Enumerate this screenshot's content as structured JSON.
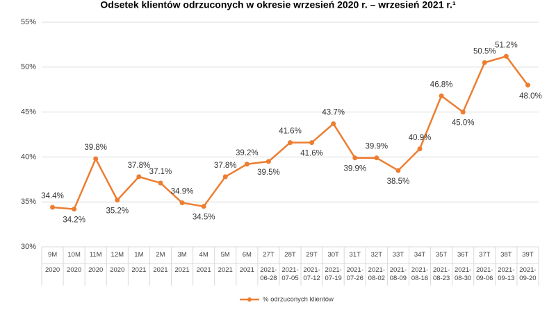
{
  "chart_data": {
    "type": "line",
    "title": "Odsetek klientów odrzuconych w okresie wrzesień 2020 r. – wrzesień 2021 r.¹",
    "categories": [
      "9M",
      "10M",
      "11M",
      "12M",
      "1M",
      "2M",
      "3M",
      "4M",
      "5M",
      "6M",
      "27T",
      "28T",
      "29T",
      "30T",
      "31T",
      "32T",
      "33T",
      "34T",
      "35T",
      "36T",
      "37T",
      "38T",
      "39T"
    ],
    "category_sublabels": [
      "2020",
      "2020",
      "2020",
      "2020",
      "2021",
      "2021",
      "2021",
      "2021",
      "2021",
      "2021",
      "2021-06-28",
      "2021-07-05",
      "2021-07-12",
      "2021-07-19",
      "2021-07-26",
      "2021-08-02",
      "2021-08-09",
      "2021-08-16",
      "2021-08-23",
      "2021-08-30",
      "2021-09-06",
      "2021-09-13",
      "2021-09-20"
    ],
    "series": [
      {
        "name": "% odrzuconych klientów",
        "color": "#ED7D31",
        "values": [
          34.4,
          34.2,
          39.8,
          35.2,
          37.8,
          37.1,
          34.9,
          34.5,
          37.8,
          39.2,
          39.5,
          41.6,
          41.6,
          43.7,
          39.9,
          39.9,
          38.5,
          40.9,
          46.8,
          45.0,
          50.5,
          51.2,
          48.0
        ],
        "value_labels": [
          "34.4%",
          "34.2%",
          "39.8%",
          "35.2%",
          "37.8%",
          "37.1%",
          "34.9%",
          "34.5%",
          "37.8%",
          "39.2%",
          "39.5%",
          "41.6%",
          "41.6%",
          "43.7%",
          "39.9%",
          "39.9%",
          "38.5%",
          "40.9%",
          "46.8%",
          "45.0%",
          "50.5%",
          "51.2%",
          "48.0%"
        ]
      }
    ],
    "ylim": [
      30,
      55
    ],
    "yticks": [
      {
        "value": 30,
        "label": "30%"
      },
      {
        "value": 35,
        "label": "35%"
      },
      {
        "value": 40,
        "label": "40%"
      },
      {
        "value": 45,
        "label": "45%"
      },
      {
        "value": 50,
        "label": "50%"
      },
      {
        "value": 55,
        "label": "55%"
      }
    ],
    "grid": true,
    "legend": "bottom"
  }
}
